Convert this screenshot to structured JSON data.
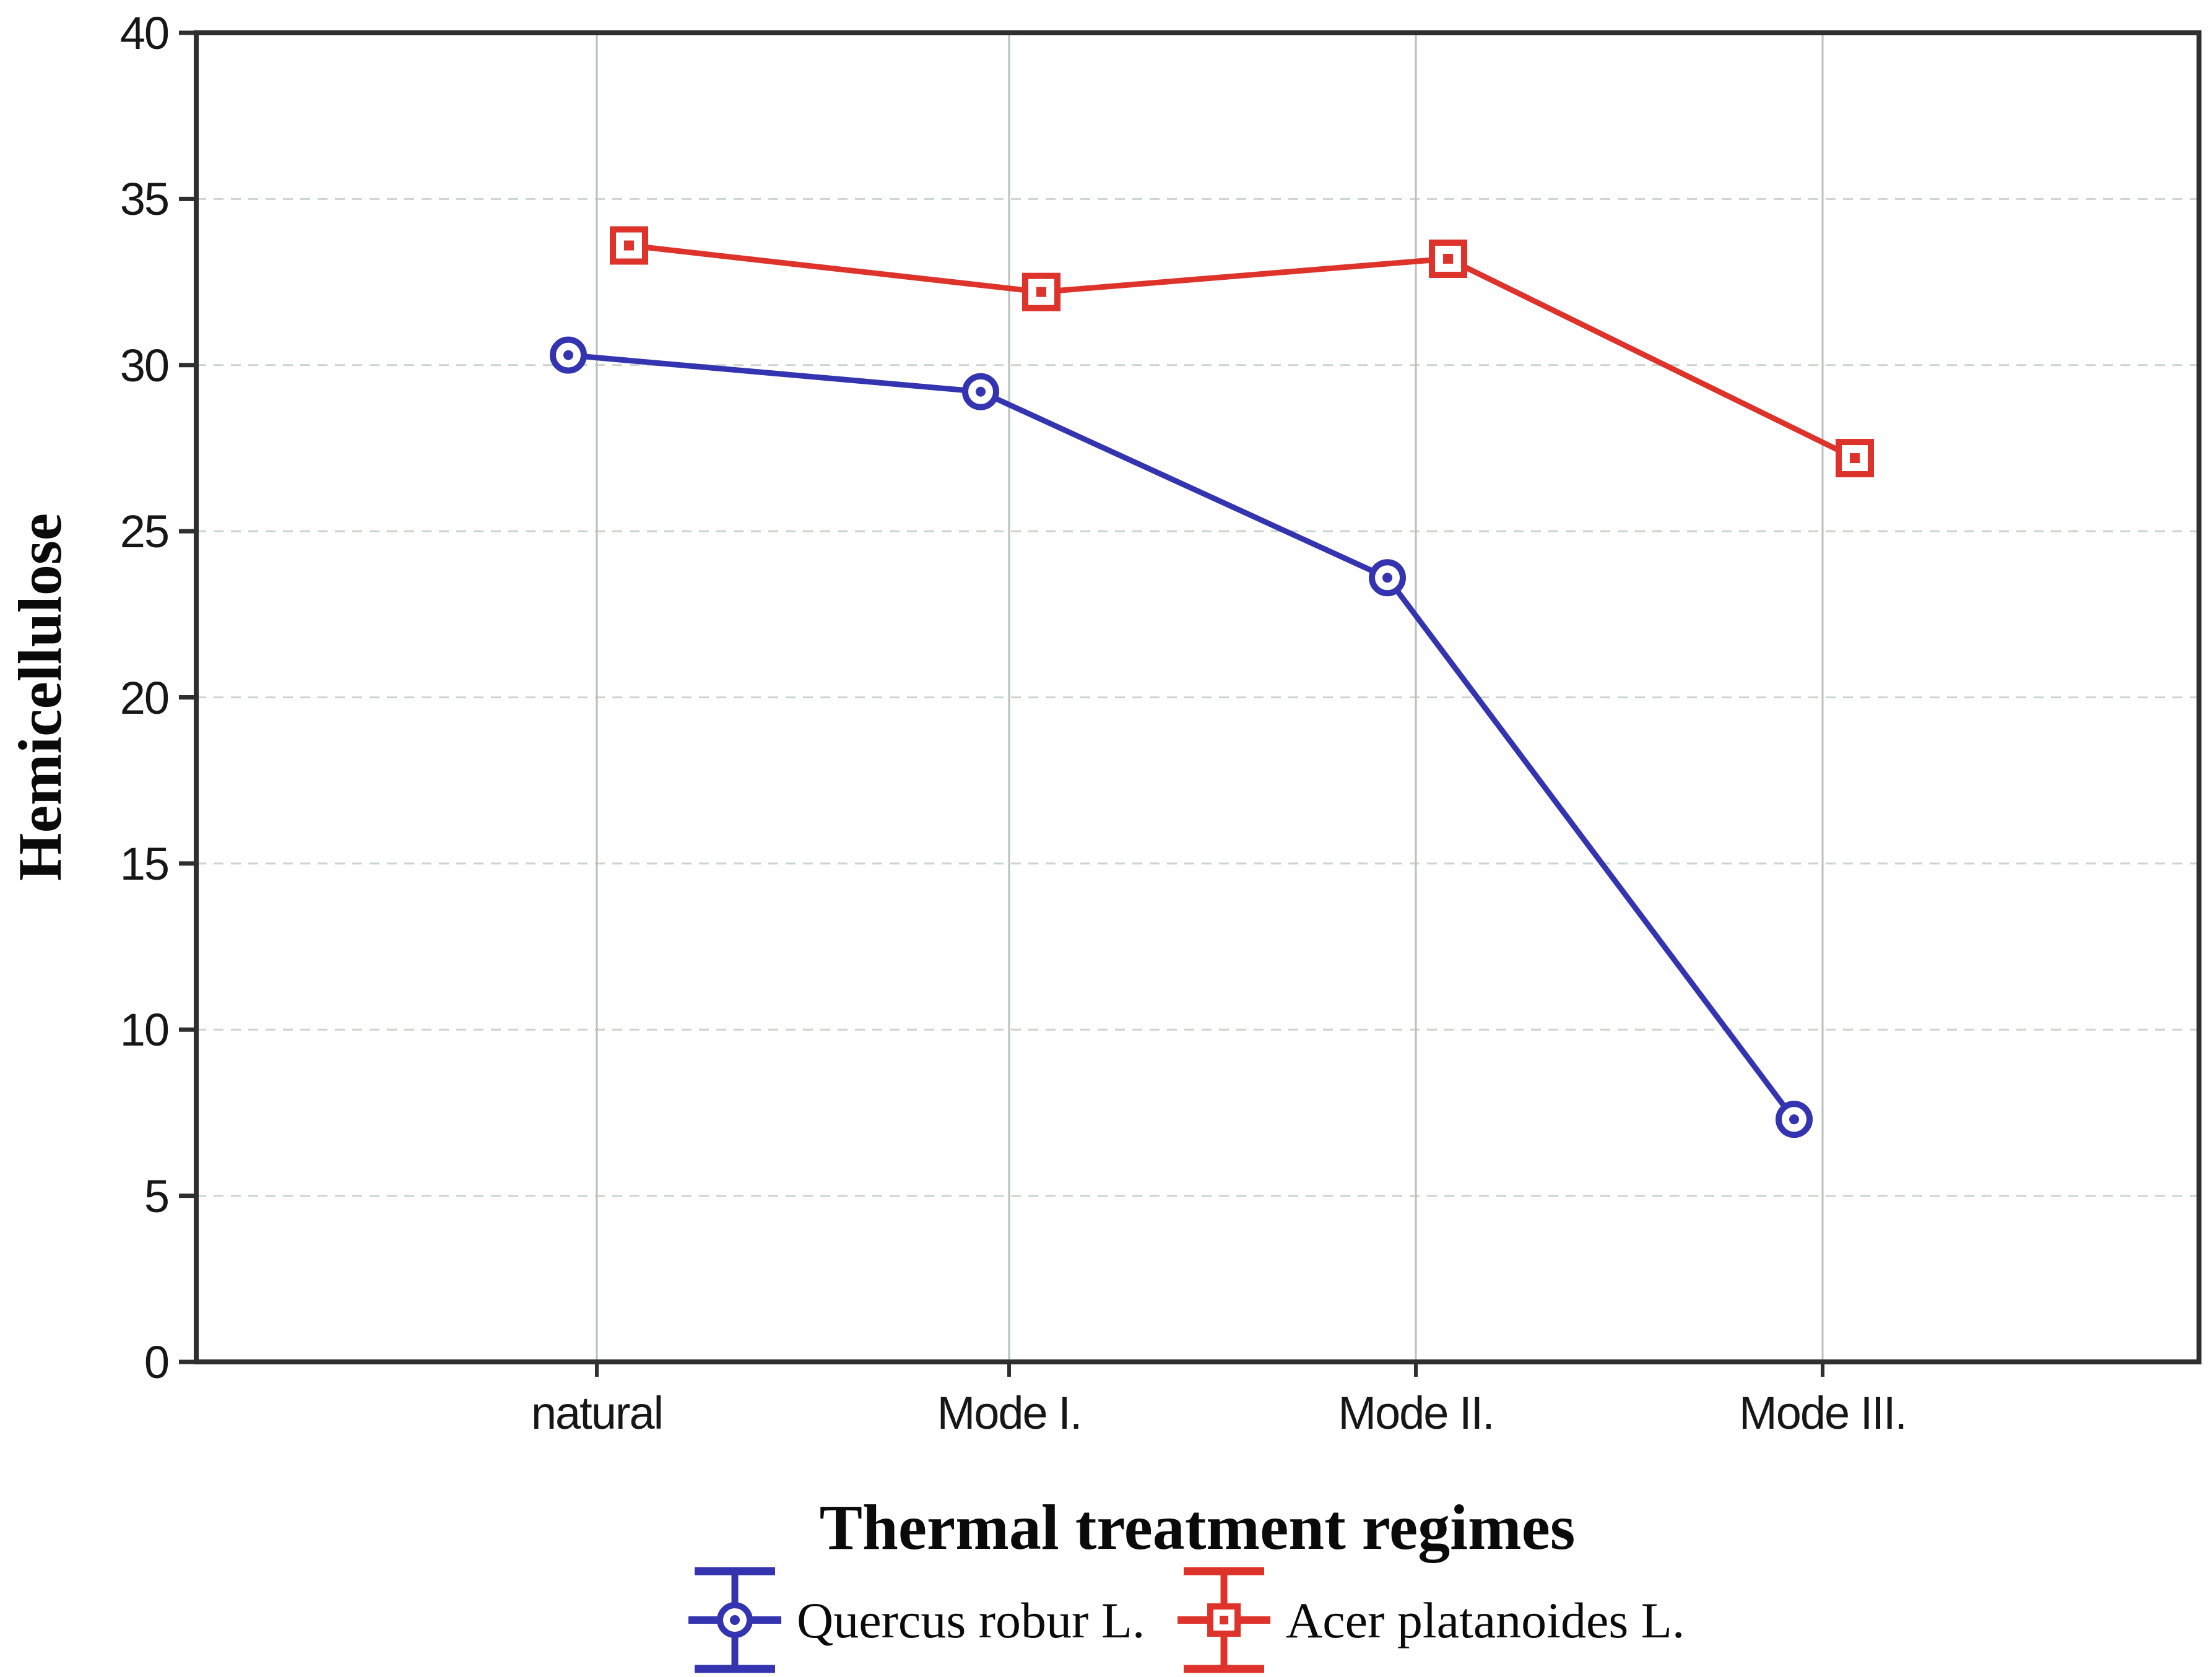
{
  "figure": {
    "y_axis": {
      "title": "Hemicellulose",
      "min": 0,
      "max": 40,
      "tick_step": 5,
      "tick_labels": [
        "0",
        "5",
        "10",
        "15",
        "20",
        "25",
        "30",
        "35",
        "40"
      ]
    },
    "x_axis": {
      "title": "Thermal treatment regimes",
      "categories": [
        "natural",
        "Mode I.",
        "Mode II.",
        "Mode III."
      ]
    },
    "legend": [
      {
        "label": "Quercus robur L.",
        "color": "#3434b0",
        "marker": "circle"
      },
      {
        "label": "Acer platanoides L.",
        "color": "#dd332b",
        "marker": "square"
      }
    ]
  },
  "chart_data": {
    "type": "line",
    "title": "",
    "xlabel": "Thermal treatment regimes",
    "ylabel": "Hemicellulose",
    "categories": [
      "natural",
      "Mode I.",
      "Mode II.",
      "Mode III."
    ],
    "series": [
      {
        "name": "Quercus robur L.",
        "color": "#3434b0",
        "marker": "circle",
        "values": [
          30.3,
          29.2,
          23.6,
          7.3
        ]
      },
      {
        "name": "Acer platanoides L.",
        "color": "#dd332b",
        "marker": "square",
        "values": [
          33.6,
          32.2,
          33.2,
          27.2
        ]
      }
    ],
    "ylim": [
      0,
      40
    ],
    "ytick_step": 5,
    "grid": true,
    "legend_position": "bottom",
    "colors": {
      "frame": "#2f2f2f",
      "h_gridline": "#cbd4cd",
      "v_gridline": "#b9c0bb",
      "tick": "#2f2f2f",
      "background": "#ffffff"
    }
  }
}
